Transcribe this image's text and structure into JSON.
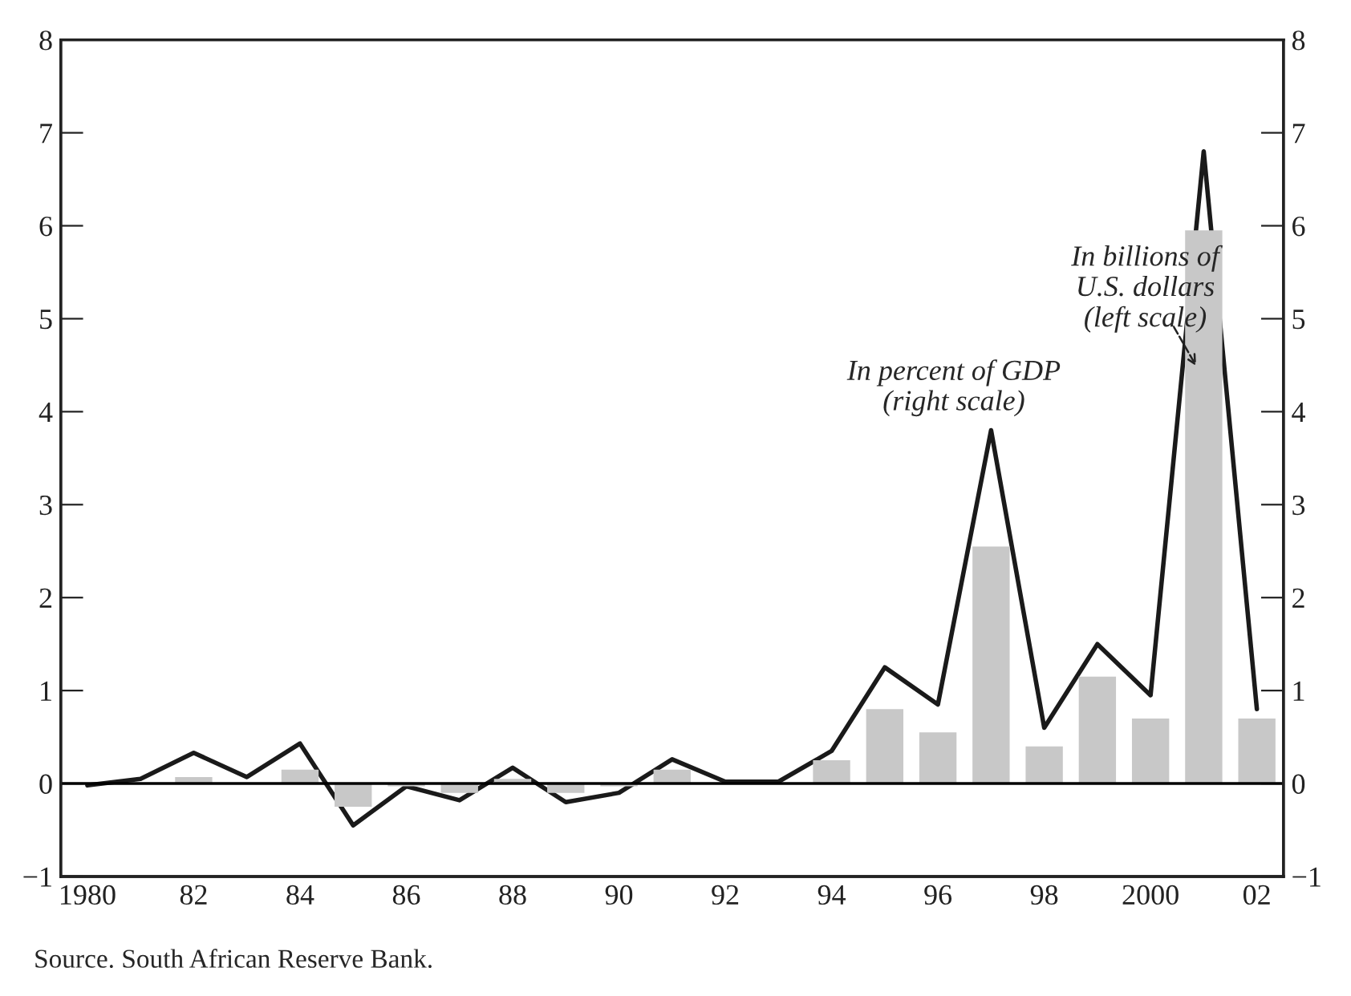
{
  "chart_data": {
    "type": "bar",
    "categories": [
      "1980",
      null,
      "82",
      null,
      "84",
      null,
      "86",
      null,
      "88",
      null,
      "90",
      null,
      "92",
      null,
      "94",
      null,
      "96",
      null,
      "98",
      null,
      "2000",
      null,
      "02"
    ],
    "series": [
      {
        "color": "#c8c8c8",
        "values": [
          0,
          0,
          0.07,
          0,
          0.15,
          -0.25,
          -0.03,
          -0.1,
          0.05,
          -0.1,
          -0.03,
          0.15,
          0,
          0,
          0.25,
          0.8,
          0.55,
          2.55,
          0.4,
          1.15,
          0.7,
          5.95,
          0.7
        ]
      },
      {
        "type": "line",
        "axis": "y2",
        "color": "#1a1a1a",
        "values": [
          -0.02,
          0.05,
          0.33,
          0.07,
          0.43,
          -0.45,
          -0.03,
          -0.18,
          0.17,
          -0.2,
          -0.1,
          0.26,
          0.02,
          0.02,
          0.35,
          1.25,
          0.85,
          3.8,
          0.6,
          1.5,
          0.95,
          6.8,
          0.8
        ]
      }
    ],
    "ylim": [
      -1,
      8
    ],
    "yticks": [
      {
        "value": -1,
        "label": "−1"
      },
      0,
      1,
      2,
      3,
      4,
      5,
      6,
      7,
      8
    ],
    "y2lim": [
      -1,
      8
    ],
    "y2ticks": [
      {
        "value": -1,
        "label": "−1"
      },
      0,
      1,
      2,
      3,
      4,
      5,
      6,
      7,
      8
    ],
    "ref_lines": [
      {
        "axis": "y",
        "value": 0,
        "color": "#000000"
      }
    ],
    "grid": false,
    "legend": false,
    "annotations": [
      "In percent of GDP\n(right scale)",
      "In billions of\nU.S. dollars\n(left scale)",
      "Source. South African Reserve Bank."
    ]
  }
}
